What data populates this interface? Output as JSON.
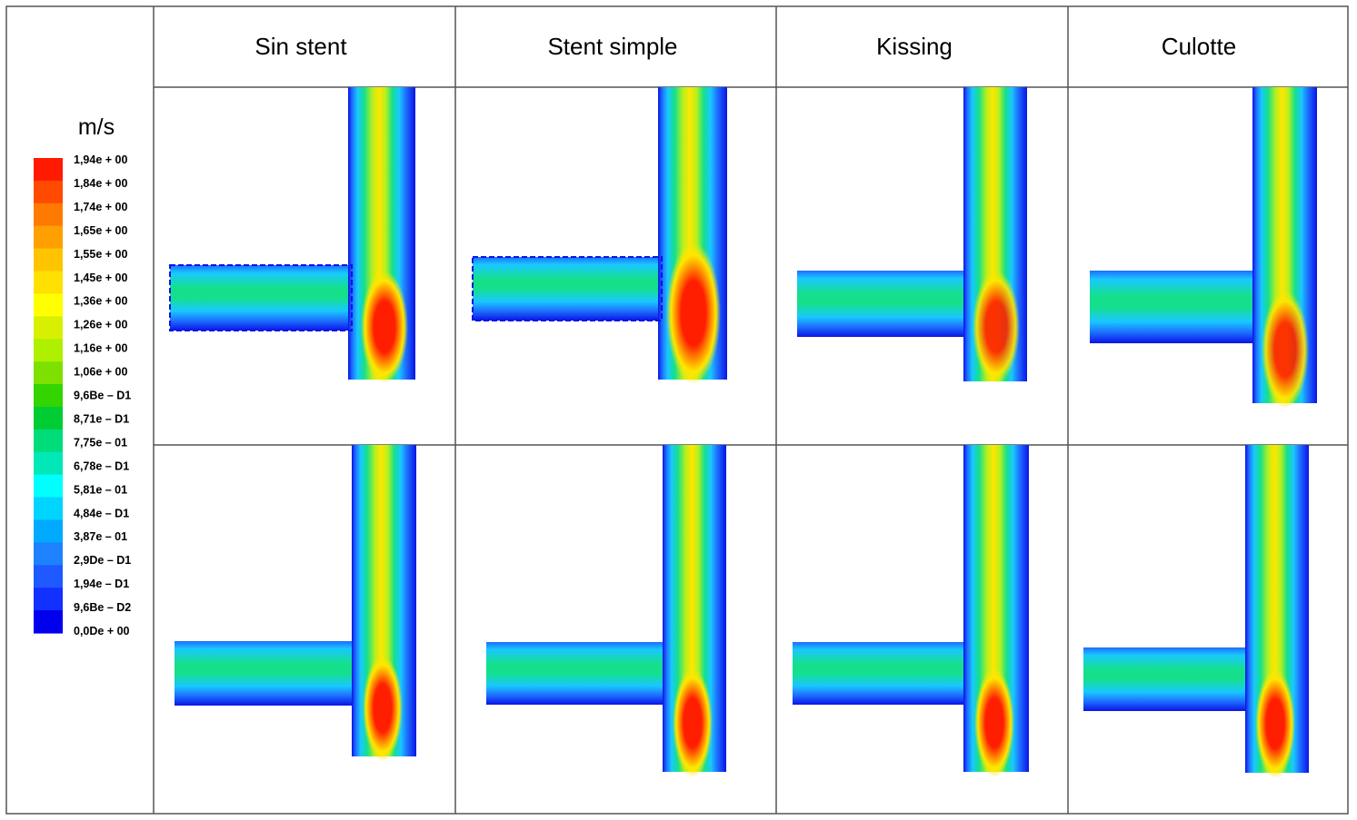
{
  "columns": [
    "Sin stent",
    "Stent simple",
    "Kissing",
    "Culotte"
  ],
  "legend": {
    "unit": "m/s",
    "labels": [
      "1,94e + 00",
      "1,84e + 00",
      "1,74e + 00",
      "1,65e + 00",
      "1,55e + 00",
      "1,45e + 00",
      "1,36e + 00",
      "1,26e + 00",
      "1,16e + 00",
      "1,06e + 00",
      "9,6Be – D1",
      "8,71e – D1",
      "7,75e – 01",
      "6,78e – D1",
      "5,81e – 01",
      "4,84e – D1",
      "3,87e – 01",
      "2,9De – D1",
      "1,94e – D1",
      "9,6Be – D2",
      "0,0De + 00"
    ],
    "colors": [
      "#ff1a00",
      "#ff4a00",
      "#ff7a00",
      "#ffa000",
      "#ffc400",
      "#ffe000",
      "#ffff00",
      "#d8f000",
      "#aef000",
      "#7ee000",
      "#33d400",
      "#00cc33",
      "#00dc7a",
      "#00e8b8",
      "#00ffff",
      "#00d4ff",
      "#00aaff",
      "#1e82ff",
      "#1e5aff",
      "#1230ff",
      "#0000ee"
    ]
  },
  "flow_colors": {
    "wall": "#0a14e6",
    "blue": "#1e6eff",
    "cyan": "#19c8ff",
    "green": "#14e08c",
    "lime": "#b4f01e",
    "yellow": "#ffe600",
    "orange": "#ff8c00",
    "red": "#ff1e00"
  }
}
